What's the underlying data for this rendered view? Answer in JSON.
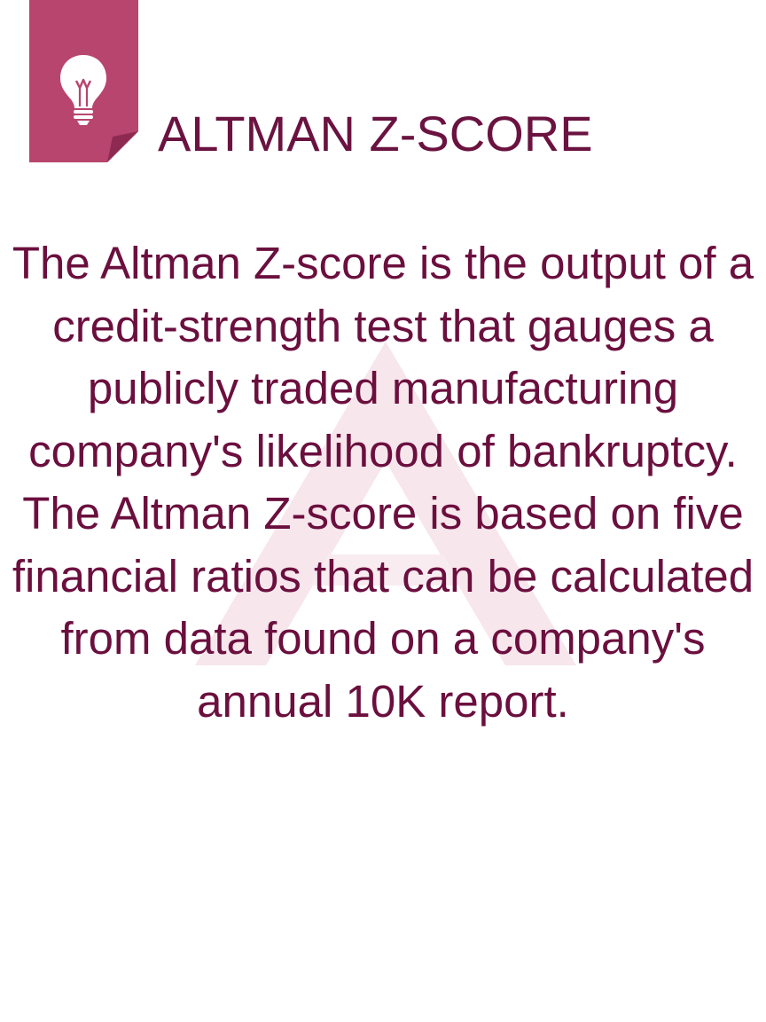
{
  "header": {
    "title": "ALTMAN Z-SCORE",
    "badge_icon": "lightbulb-icon"
  },
  "content": {
    "paragraphs": [
      "The Altman Z-score is the output of a credit-strength test that gauges a publicly traded manufacturing company's likelihood of bankruptcy.",
      "The Altman Z-score is based on five financial ratios that can be calculated from data found on a company's annual 10K report."
    ]
  },
  "colors": {
    "badge": "#b8456e",
    "badge_fold": "#8e2a52",
    "text": "#6b0f3e",
    "watermark": "#f7e6ec"
  }
}
